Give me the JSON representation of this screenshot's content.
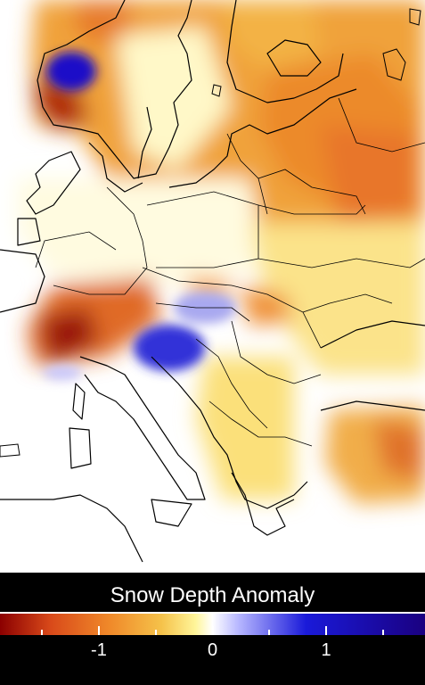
{
  "legend": {
    "title": "Snow Depth Anomaly",
    "ticks": [
      "-1",
      "0",
      "1"
    ],
    "scale_min": -1.87,
    "scale_max": 1.87,
    "colors": [
      "#8b0000",
      "#d94a1a",
      "#f08a2a",
      "#f5c24a",
      "#fff59a",
      "#ffffff",
      "#b8b8ff",
      "#1a1ad9",
      "#1a0080"
    ]
  },
  "map": {
    "region": "Europe",
    "background_color": "#ffffff",
    "border_color": "#000000"
  }
}
